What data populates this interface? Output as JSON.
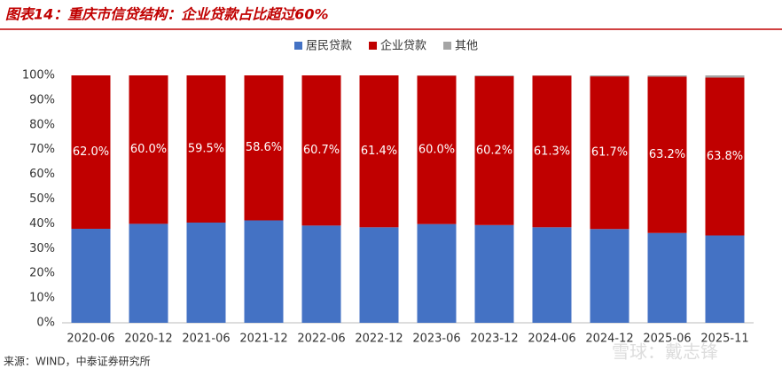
{
  "chart_data": {
    "type": "stacked_bar",
    "title": "图表14：重庆市信贷结构：企业贷款占比超过60%",
    "source": "来源：WIND，中泰证券研究所",
    "watermark": "雪球：戴志锋",
    "categories": [
      "2020-06",
      "2020-12",
      "2021-06",
      "2021-12",
      "2022-06",
      "2022-12",
      "2023-06",
      "2023-12",
      "2024-06",
      "2024-12",
      "2025-06",
      "2025-11"
    ],
    "series": [
      {
        "name": "居民贷款",
        "color": "#4472c4",
        "values": [
          38.0,
          40.0,
          40.5,
          41.4,
          39.3,
          38.6,
          39.9,
          39.5,
          38.6,
          37.9,
          36.3,
          35.3
        ]
      },
      {
        "name": "企业贷款",
        "color": "#c00000",
        "values": [
          62.0,
          60.0,
          59.5,
          58.6,
          60.7,
          61.4,
          60.0,
          60.2,
          61.3,
          61.7,
          63.2,
          63.8
        ],
        "value_labels": [
          "62.0%",
          "60.0%",
          "59.5%",
          "58.6%",
          "60.7%",
          "61.4%",
          "60.0%",
          "60.2%",
          "61.3%",
          "61.7%",
          "63.2%",
          "63.8%"
        ]
      },
      {
        "name": "其他",
        "color": "#a5a5a5",
        "values": [
          0,
          0,
          0,
          0,
          0,
          0,
          0.1,
          0.3,
          0.1,
          0.4,
          0.5,
          0.9
        ]
      }
    ],
    "ylim": [
      0,
      100
    ],
    "yticks": [
      {
        "value": 0,
        "label": "0%"
      },
      {
        "value": 10,
        "label": "10%"
      },
      {
        "value": 20,
        "label": "20%"
      },
      {
        "value": 30,
        "label": "30%"
      },
      {
        "value": 40,
        "label": "40%"
      },
      {
        "value": 50,
        "label": "50%"
      },
      {
        "value": 60,
        "label": "60%"
      },
      {
        "value": 70,
        "label": "70%"
      },
      {
        "value": 80,
        "label": "80%"
      },
      {
        "value": 90,
        "label": "90%"
      },
      {
        "value": 100,
        "label": "100%"
      }
    ]
  }
}
